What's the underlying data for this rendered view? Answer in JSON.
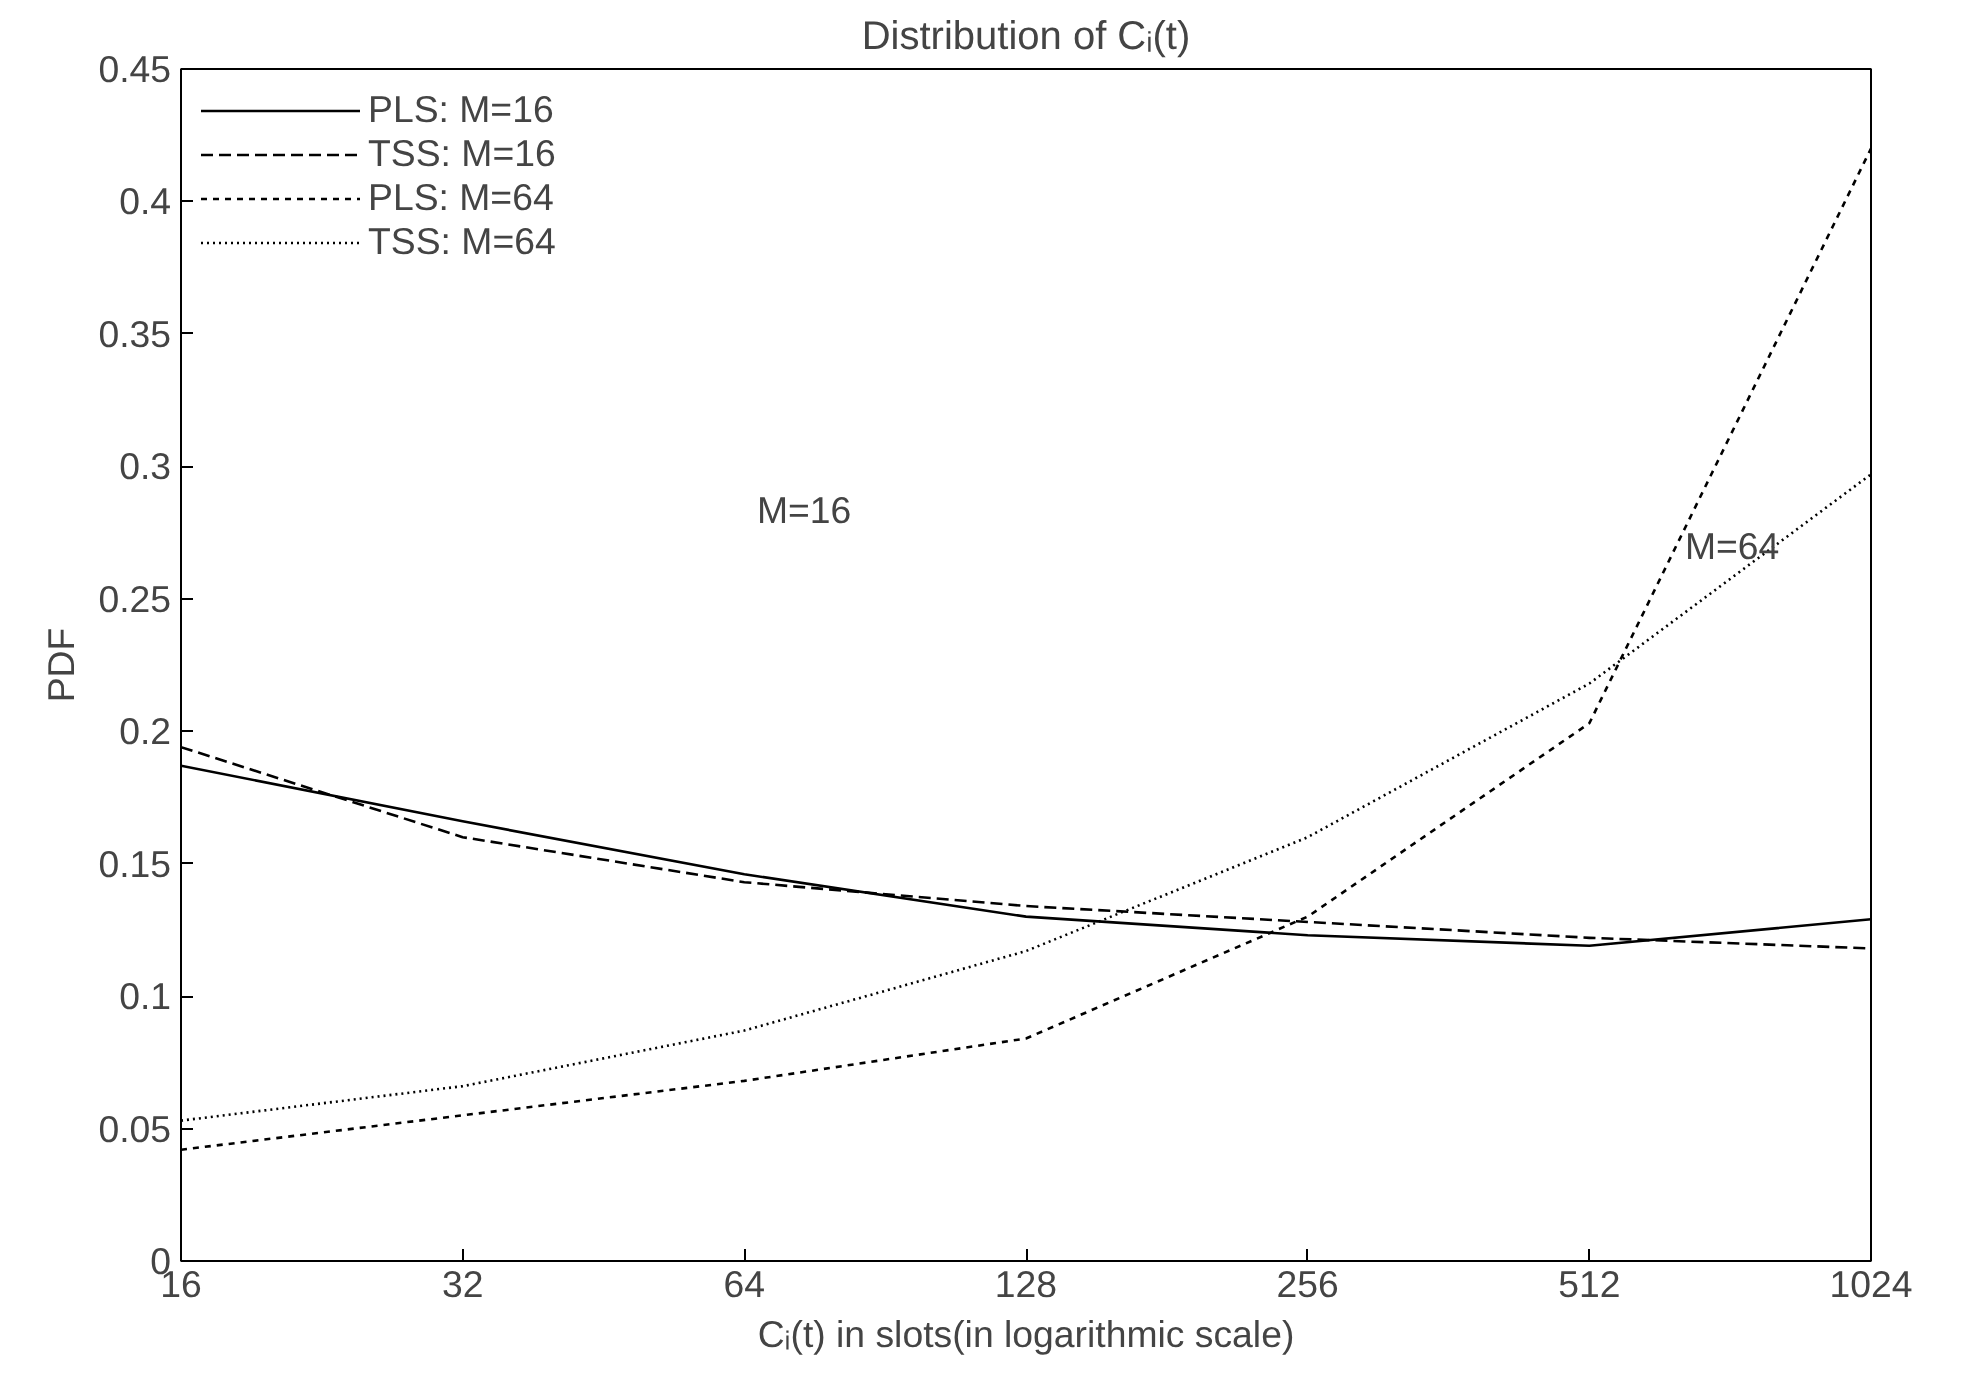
{
  "chart_data": {
    "type": "line",
    "title": "Distribution of Cᵢ(t)",
    "xlabel": "Cᵢ(t) in slots(in logarithmic scale)",
    "ylabel": "PDF",
    "x": [
      16,
      32,
      64,
      128,
      256,
      512,
      1024
    ],
    "series": [
      {
        "name": "PLS: M=16",
        "color": "#000000",
        "line_style": "solid",
        "values": [
          0.187,
          0.166,
          0.146,
          0.13,
          0.123,
          0.119,
          0.129
        ]
      },
      {
        "name": "TSS: M=16",
        "color": "#000000",
        "line_style": "dashed",
        "values": [
          0.194,
          0.16,
          0.143,
          0.134,
          0.128,
          0.122,
          0.118
        ]
      },
      {
        "name": "PLS: M=64",
        "color": "#000000",
        "line_style": "dashed",
        "values": [
          0.042,
          0.055,
          0.068,
          0.084,
          0.13,
          0.203,
          0.42
        ]
      },
      {
        "name": "TSS: M=64",
        "color": "#000000",
        "line_style": "dotted",
        "values": [
          0.053,
          0.066,
          0.087,
          0.117,
          0.16,
          0.218,
          0.297
        ]
      }
    ],
    "log": "x",
    "xlim": [
      16,
      1024
    ],
    "xticks": [
      16,
      32,
      64,
      128,
      256,
      512,
      1024
    ],
    "ylim": [
      0,
      0.45
    ],
    "yticks": [
      0,
      0.05,
      0.1,
      0.15,
      0.2,
      0.25,
      0.3,
      0.35,
      0.4,
      0.45
    ],
    "grid": false,
    "legend": "top left",
    "marker": "none",
    "annotations": [
      "M=16",
      "M=64"
    ]
  }
}
